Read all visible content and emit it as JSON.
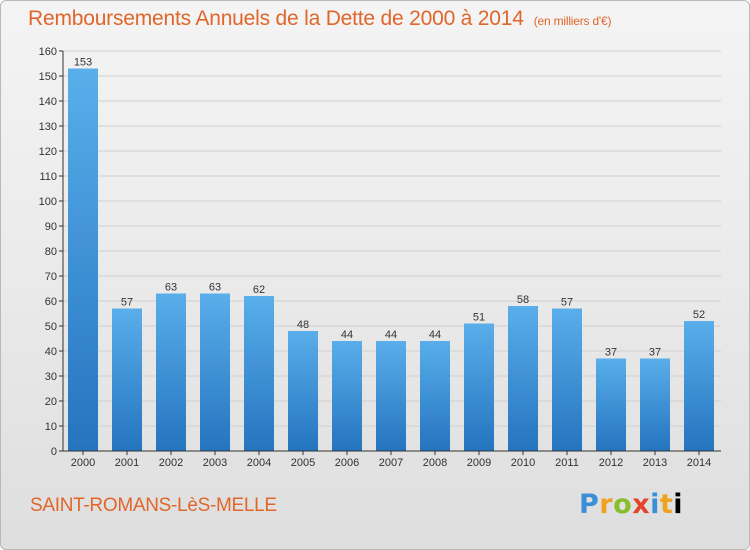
{
  "header": {
    "title": "Remboursements Annuels de la Dette de 2000 à 2014",
    "unit": "(en milliers d'€)"
  },
  "footer": {
    "commune": "SAINT-ROMANS-LèS-MELLE",
    "brand_letters": [
      "P",
      "r",
      "o",
      "x",
      "i",
      "t",
      "i"
    ]
  },
  "colors": {
    "title": "#e0662a",
    "bar_top": "#5aaeea",
    "bar_bottom": "#2474bf",
    "axis": "#333333",
    "grid": "#d0d0d0"
  },
  "chart_data": {
    "type": "bar",
    "categories": [
      "2000",
      "2001",
      "2002",
      "2003",
      "2004",
      "2005",
      "2006",
      "2007",
      "2008",
      "2009",
      "2010",
      "2011",
      "2012",
      "2013",
      "2014"
    ],
    "values": [
      153,
      57,
      63,
      63,
      62,
      48,
      44,
      44,
      44,
      51,
      58,
      57,
      37,
      37,
      52
    ],
    "ylim": [
      0,
      160
    ],
    "y_ticks": [
      0,
      10,
      20,
      30,
      40,
      50,
      60,
      70,
      80,
      90,
      100,
      110,
      120,
      130,
      140,
      150,
      160
    ],
    "grid": "horizontal",
    "data_labels": true
  }
}
